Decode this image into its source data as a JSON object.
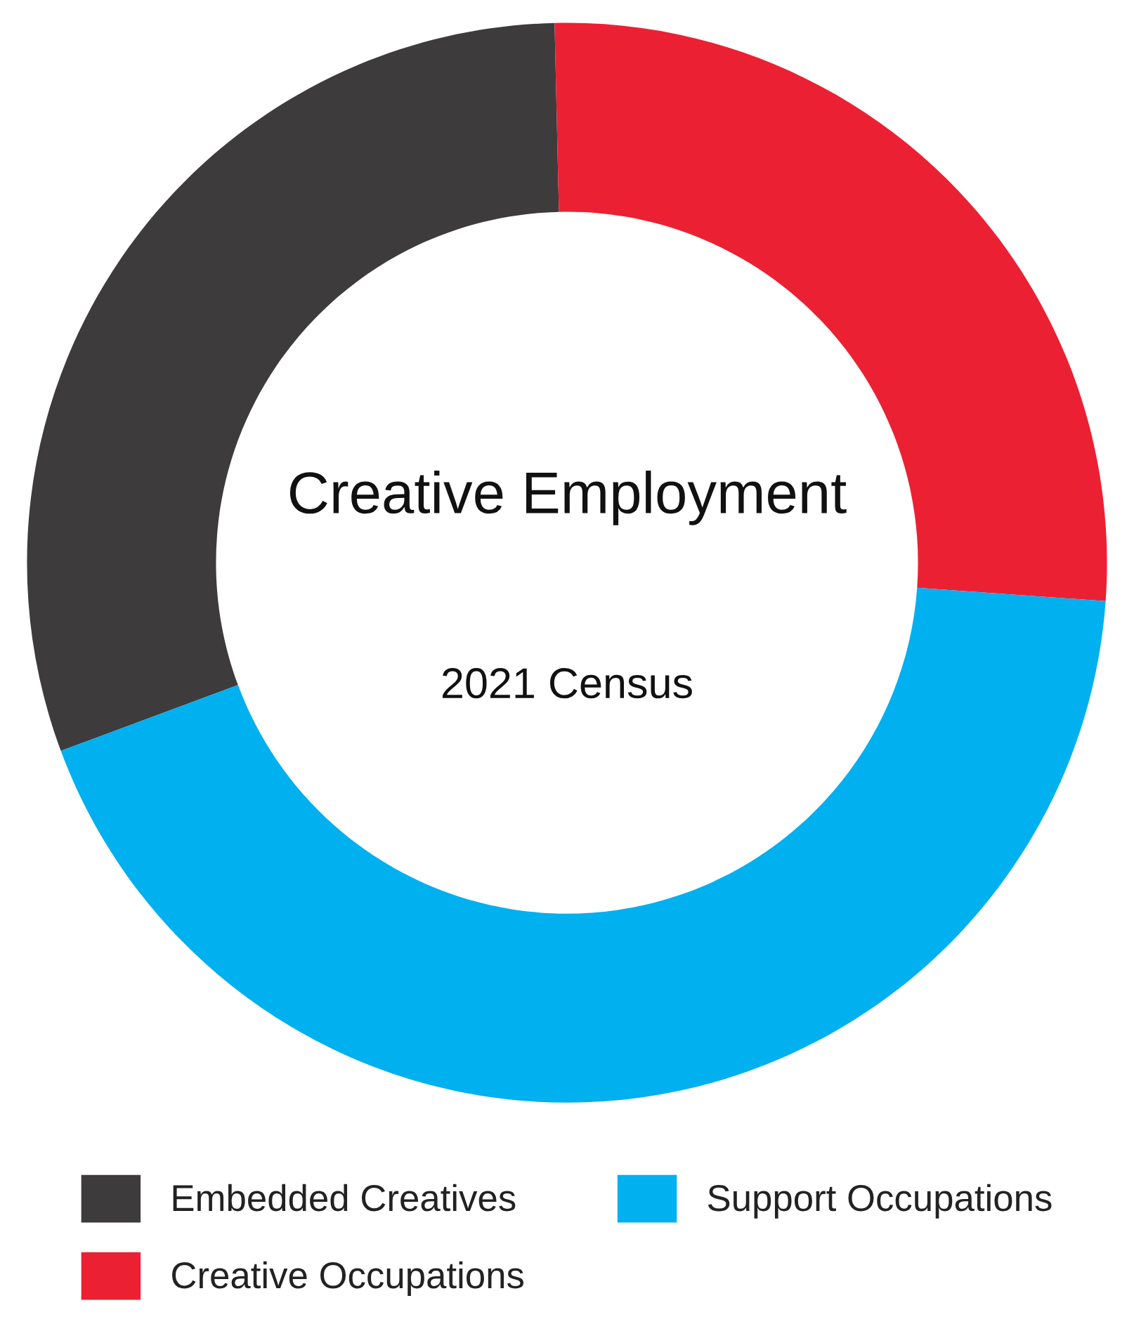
{
  "chart_data": {
    "type": "donut",
    "title": "Creative Employment",
    "subtitle": "2021 Census",
    "categories": [
      "Embedded Creatives",
      "Creative Occupations",
      "Support Occupations"
    ],
    "values": [
      30.3,
      26.5,
      43.2
    ],
    "colors": [
      "#3d3b3c",
      "#ec2033",
      "#00b0ef"
    ],
    "legend": "bottom"
  }
}
